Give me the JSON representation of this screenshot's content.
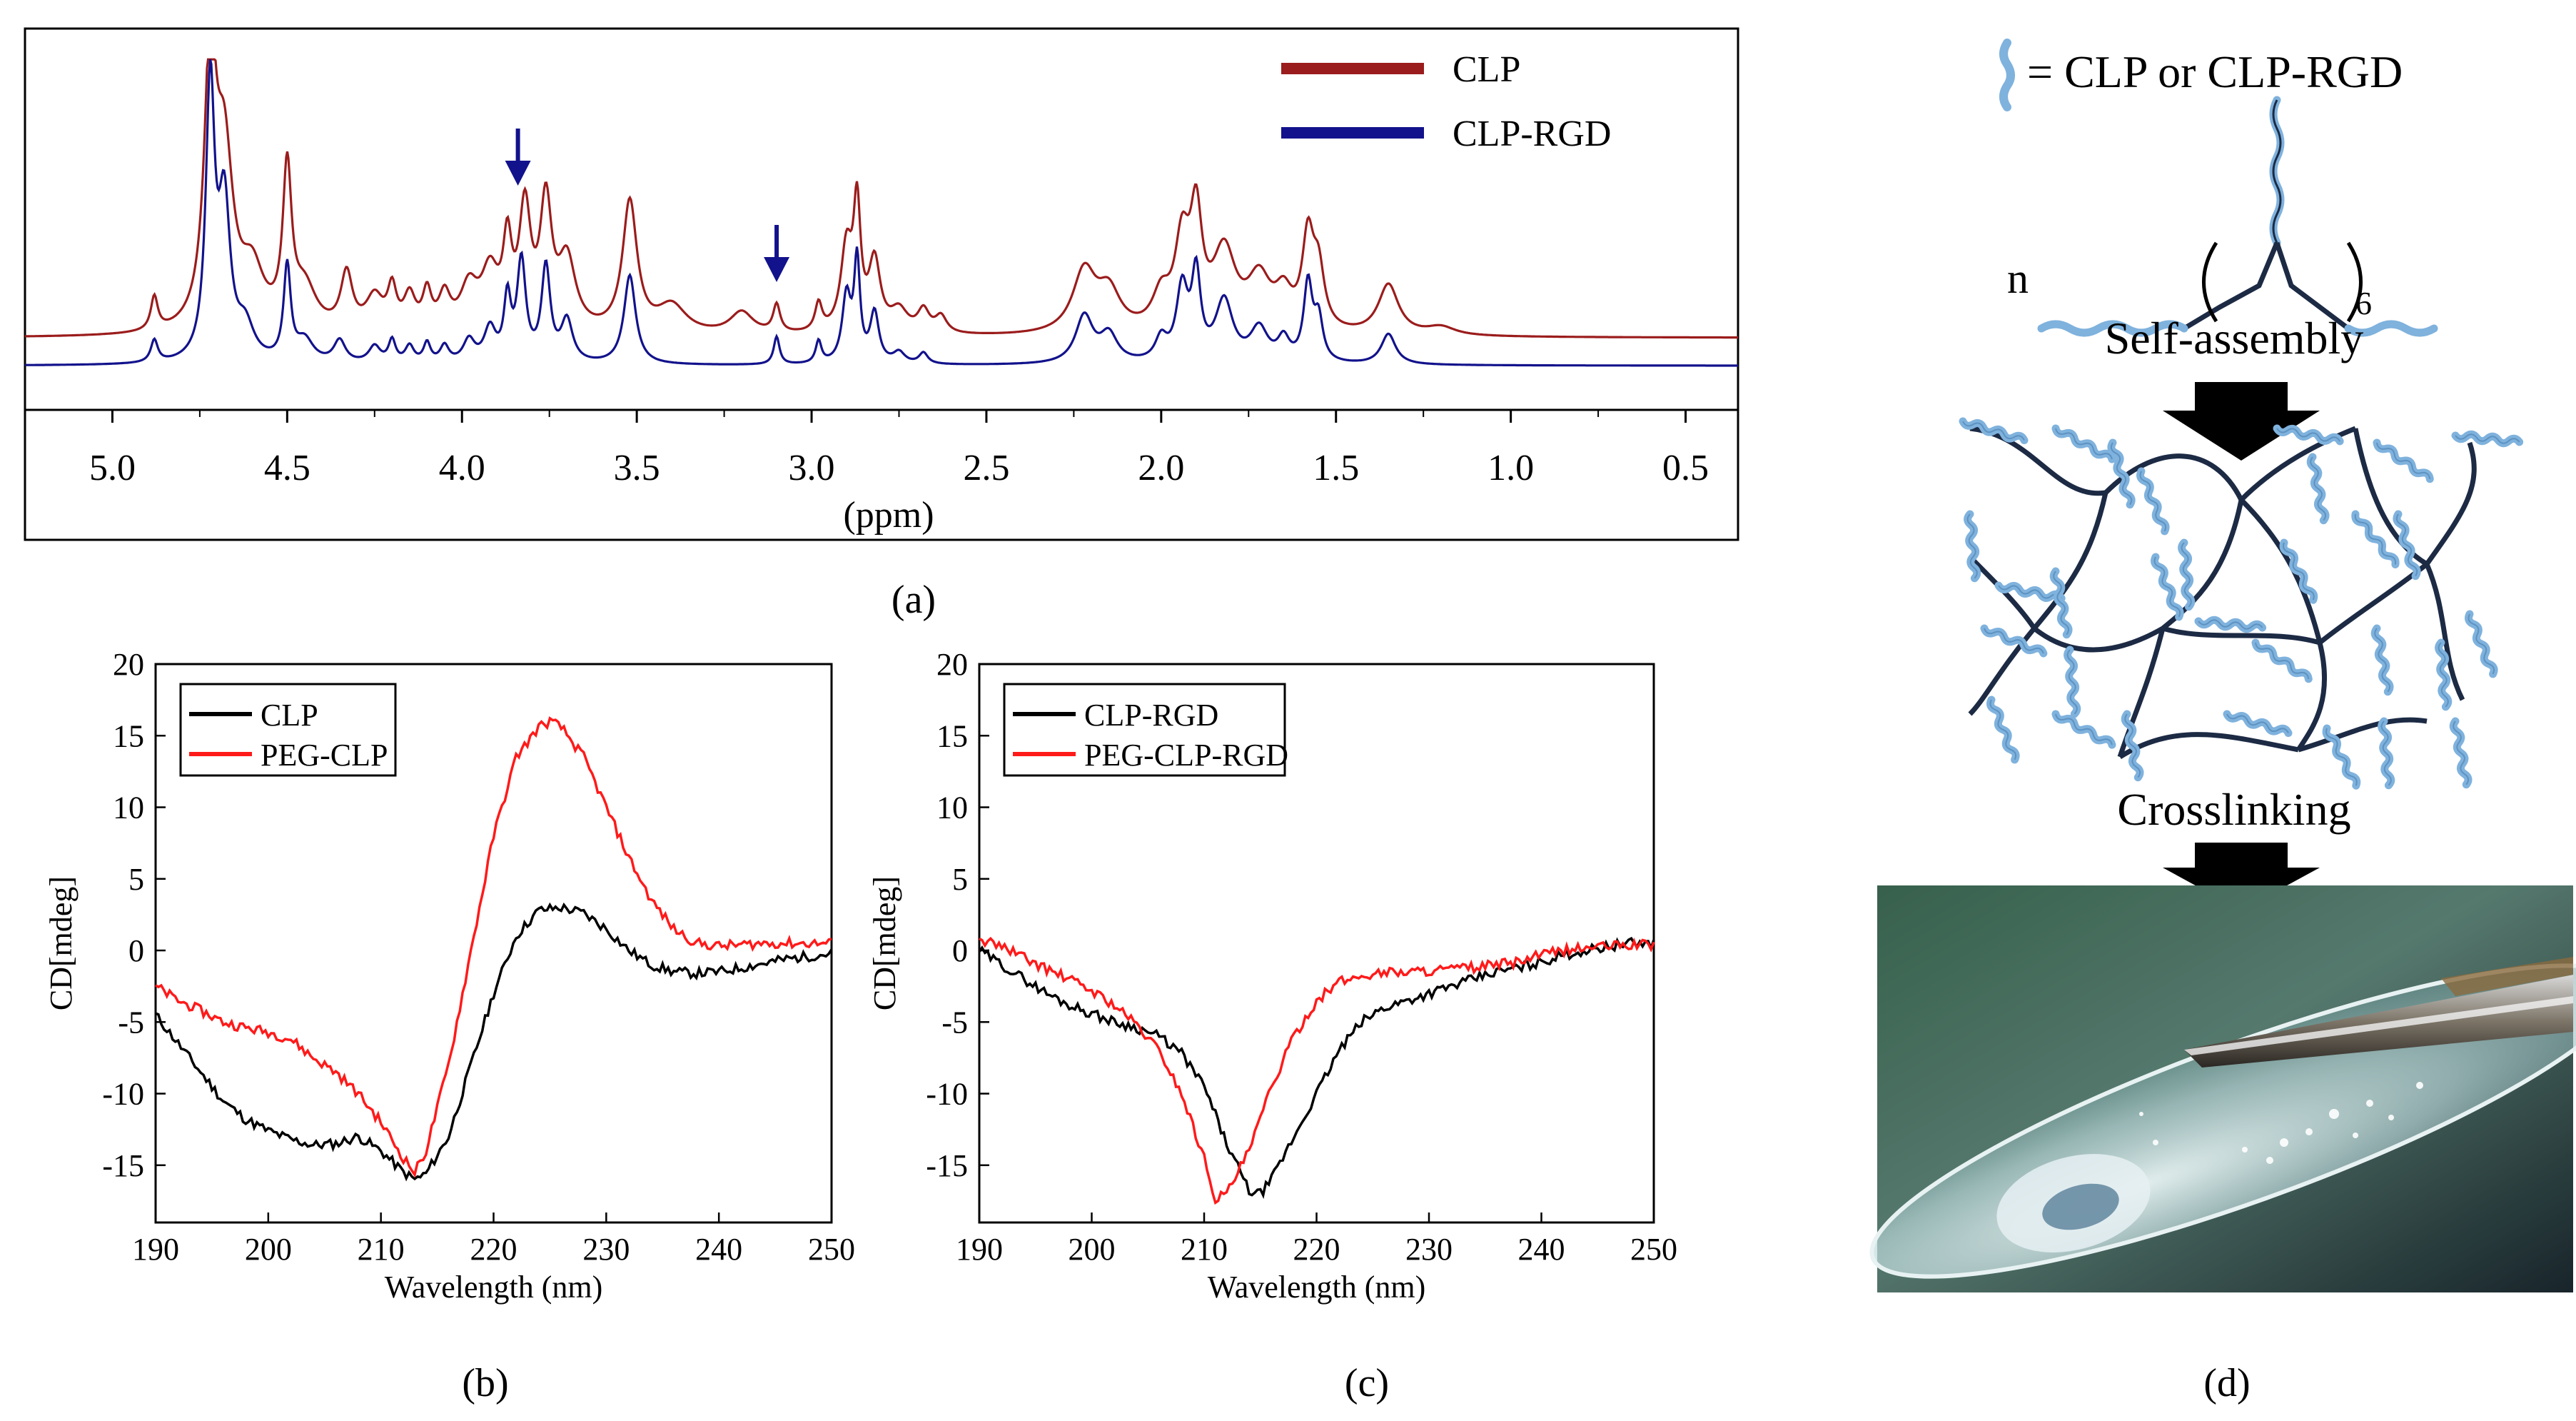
{
  "panels": {
    "a": {
      "label": "(a)"
    },
    "b": {
      "label": "(b)"
    },
    "c": {
      "label": "(c)"
    },
    "d": {
      "label": "(d)",
      "legend_text": "= CLP or CLP-RGD",
      "n_label": "n",
      "subscript": "6",
      "step1": "Self-assembly",
      "step2": "Crosslinking"
    }
  },
  "colors": {
    "clp_dark_red": "#9b1c1c",
    "clp_rgd_blue": "#12128c",
    "black": "#000000",
    "red": "#ff1a1a",
    "strand_blue": "#7fb2dd",
    "network_dark": "#1c2a44"
  },
  "chart_data": [
    {
      "id": "nmr",
      "type": "line",
      "title": "",
      "xlabel": "(ppm)",
      "ylabel": "",
      "xlim": [
        5.25,
        0.35
      ],
      "xticks": [
        5.0,
        4.5,
        4.0,
        3.5,
        3.0,
        2.5,
        2.0,
        1.5,
        1.0,
        0.5
      ],
      "xtick_labels": [
        "5.0",
        "4.5",
        "4.0",
        "3.5",
        "3.0",
        "2.5",
        "2.0",
        "1.5",
        "1.0",
        "0.5"
      ],
      "ylim": [
        0,
        100
      ],
      "legend": "top-right",
      "annotations": [
        {
          "type": "down-arrow",
          "x": 3.84
        },
        {
          "type": "down-arrow",
          "x": 3.1
        }
      ],
      "series": [
        {
          "name": "CLP",
          "color": "#9b1c1c",
          "baseline": 12,
          "peaks": [
            [
              4.88,
              12,
              0.012
            ],
            [
              4.72,
              95,
              0.02
            ],
            [
              4.68,
              60,
              0.03
            ],
            [
              4.6,
              20,
              0.04
            ],
            [
              4.5,
              55,
              0.015
            ],
            [
              4.45,
              15,
              0.04
            ],
            [
              4.33,
              20,
              0.02
            ],
            [
              4.25,
              12,
              0.03
            ],
            [
              4.2,
              14,
              0.015
            ],
            [
              4.15,
              12,
              0.02
            ],
            [
              4.1,
              13,
              0.015
            ],
            [
              4.05,
              12,
              0.02
            ],
            [
              3.98,
              15,
              0.03
            ],
            [
              3.92,
              20,
              0.03
            ],
            [
              3.87,
              28,
              0.015
            ],
            [
              3.82,
              42,
              0.02
            ],
            [
              3.76,
              44,
              0.02
            ],
            [
              3.7,
              25,
              0.03
            ],
            [
              3.52,
              47,
              0.025
            ],
            [
              3.4,
              10,
              0.05
            ],
            [
              3.2,
              8,
              0.04
            ],
            [
              3.1,
              10,
              0.012
            ],
            [
              2.98,
              10,
              0.012
            ],
            [
              2.9,
              30,
              0.02
            ],
            [
              2.87,
              42,
              0.012
            ],
            [
              2.82,
              25,
              0.02
            ],
            [
              2.75,
              8,
              0.03
            ],
            [
              2.68,
              8,
              0.02
            ],
            [
              2.63,
              6,
              0.02
            ],
            [
              2.22,
              22,
              0.04
            ],
            [
              2.15,
              14,
              0.04
            ],
            [
              2.0,
              12,
              0.03
            ],
            [
              1.94,
              30,
              0.025
            ],
            [
              1.9,
              38,
              0.02
            ],
            [
              1.82,
              28,
              0.04
            ],
            [
              1.72,
              18,
              0.04
            ],
            [
              1.65,
              12,
              0.03
            ],
            [
              1.58,
              32,
              0.02
            ],
            [
              1.55,
              20,
              0.02
            ],
            [
              1.35,
              18,
              0.035
            ],
            [
              1.2,
              3,
              0.05
            ]
          ]
        },
        {
          "name": "CLP-RGD",
          "color": "#12128c",
          "baseline": 2,
          "peaks": [
            [
              4.88,
              8,
              0.012
            ],
            [
              4.72,
              98,
              0.015
            ],
            [
              4.68,
              55,
              0.02
            ],
            [
              4.62,
              12,
              0.03
            ],
            [
              4.5,
              34,
              0.012
            ],
            [
              4.45,
              8,
              0.03
            ],
            [
              4.35,
              8,
              0.02
            ],
            [
              4.25,
              6,
              0.02
            ],
            [
              4.2,
              8,
              0.012
            ],
            [
              4.15,
              6,
              0.015
            ],
            [
              4.1,
              7,
              0.012
            ],
            [
              4.05,
              6,
              0.015
            ],
            [
              3.98,
              8,
              0.02
            ],
            [
              3.92,
              12,
              0.02
            ],
            [
              3.87,
              22,
              0.012
            ],
            [
              3.83,
              36,
              0.015
            ],
            [
              3.76,
              34,
              0.015
            ],
            [
              3.7,
              15,
              0.02
            ],
            [
              3.52,
              32,
              0.02
            ],
            [
              3.1,
              10,
              0.01
            ],
            [
              2.98,
              8,
              0.01
            ],
            [
              2.9,
              24,
              0.015
            ],
            [
              2.87,
              36,
              0.01
            ],
            [
              2.82,
              18,
              0.015
            ],
            [
              2.75,
              4,
              0.02
            ],
            [
              2.68,
              4,
              0.015
            ],
            [
              2.22,
              17,
              0.03
            ],
            [
              2.15,
              10,
              0.03
            ],
            [
              2.0,
              8,
              0.02
            ],
            [
              1.94,
              26,
              0.02
            ],
            [
              1.9,
              30,
              0.015
            ],
            [
              1.82,
              22,
              0.03
            ],
            [
              1.72,
              12,
              0.03
            ],
            [
              1.65,
              8,
              0.02
            ],
            [
              1.58,
              28,
              0.015
            ],
            [
              1.55,
              15,
              0.015
            ],
            [
              1.35,
              11,
              0.025
            ]
          ]
        }
      ]
    },
    {
      "id": "cd_b",
      "type": "line",
      "title": "",
      "xlabel": "Wavelength (nm)",
      "ylabel": "CD[mdeg]",
      "xlim": [
        190,
        250
      ],
      "ylim": [
        -19,
        20
      ],
      "xticks": [
        190,
        200,
        210,
        220,
        230,
        240,
        250
      ],
      "yticks": [
        -15,
        -10,
        -5,
        0,
        5,
        10,
        15,
        20
      ],
      "legend": "top-left",
      "series": [
        {
          "name": "CLP",
          "color": "#000000",
          "x": [
            190,
            192,
            194,
            196,
            198,
            200,
            202,
            204,
            206,
            208,
            210,
            212,
            213,
            214,
            216,
            218,
            220,
            222,
            224,
            226,
            228,
            230,
            232,
            234,
            236,
            238,
            240,
            242,
            244,
            246,
            248,
            250
          ],
          "y": [
            -4.5,
            -6.5,
            -8.5,
            -10.5,
            -11.8,
            -12.6,
            -13.2,
            -13.6,
            -13.5,
            -13,
            -14,
            -15.5,
            -16,
            -15.6,
            -13,
            -8,
            -3,
            1,
            2.8,
            3,
            2.6,
            1.5,
            0,
            -1,
            -1.5,
            -1.6,
            -1.5,
            -1.2,
            -0.9,
            -0.6,
            -0.4,
            -0.2
          ]
        },
        {
          "name": "PEG-CLP",
          "color": "#ff1a1a",
          "x": [
            190,
            192,
            194,
            196,
            198,
            200,
            202,
            204,
            206,
            208,
            210,
            212,
            213,
            214,
            216,
            218,
            220,
            222,
            224,
            225,
            226,
            228,
            230,
            232,
            234,
            236,
            238,
            240,
            242,
            244,
            246,
            248,
            250
          ],
          "y": [
            -2.5,
            -3.5,
            -4.2,
            -5,
            -5.4,
            -5.7,
            -6.2,
            -7.5,
            -8.5,
            -10,
            -12,
            -14.5,
            -15.5,
            -14,
            -8,
            0,
            8,
            13.5,
            15.6,
            16,
            15.6,
            13.5,
            10,
            6.5,
            3.5,
            1.5,
            0.5,
            0.3,
            0.4,
            0.5,
            0.5,
            0.5,
            0.5
          ]
        }
      ]
    },
    {
      "id": "cd_c",
      "type": "line",
      "title": "",
      "xlabel": "Wavelength (nm)",
      "ylabel": "CD[mdeg]",
      "xlim": [
        190,
        250
      ],
      "ylim": [
        -19,
        20
      ],
      "xticks": [
        190,
        200,
        210,
        220,
        230,
        240,
        250
      ],
      "yticks": [
        -15,
        -10,
        -5,
        0,
        5,
        10,
        15,
        20
      ],
      "legend": "top-left",
      "series": [
        {
          "name": "CLP-RGD",
          "color": "#000000",
          "x": [
            190,
            192,
            194,
            196,
            198,
            200,
            202,
            204,
            206,
            208,
            210,
            212,
            214,
            215,
            216,
            218,
            220,
            222,
            224,
            226,
            228,
            230,
            232,
            234,
            236,
            238,
            240,
            242,
            244,
            246,
            248,
            250
          ],
          "y": [
            0,
            -1,
            -2,
            -3,
            -3.8,
            -4.4,
            -5,
            -5.4,
            -6,
            -7.2,
            -9.5,
            -13.5,
            -16.8,
            -17,
            -16,
            -13,
            -10,
            -7,
            -5,
            -4,
            -3.5,
            -3,
            -2.5,
            -2,
            -1.5,
            -1.2,
            -0.8,
            -0.3,
            0,
            0.3,
            0.5,
            0.5
          ]
        },
        {
          "name": "PEG-CLP-RGD",
          "color": "#ff1a1a",
          "x": [
            190,
            192,
            194,
            196,
            198,
            200,
            202,
            204,
            206,
            208,
            210,
            211,
            212,
            214,
            216,
            218,
            220,
            222,
            224,
            226,
            228,
            230,
            232,
            234,
            236,
            238,
            240,
            242,
            244,
            246,
            248,
            250
          ],
          "y": [
            0.8,
            0.3,
            -0.5,
            -1.3,
            -2,
            -2.8,
            -3.8,
            -5.2,
            -7,
            -10,
            -14.5,
            -17.3,
            -17,
            -14,
            -9.5,
            -6,
            -3.5,
            -2.2,
            -1.8,
            -1.5,
            -1.5,
            -1.4,
            -1.3,
            -1.2,
            -1,
            -0.8,
            -0.3,
            0,
            0.2,
            0.3,
            0.4,
            0.4
          ]
        }
      ]
    }
  ]
}
